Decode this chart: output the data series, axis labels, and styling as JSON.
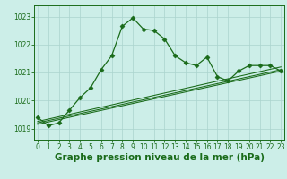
{
  "title": "Graphe pression niveau de la mer (hPa)",
  "background_color": "#cceee8",
  "grid_color": "#aad4ce",
  "line_color": "#1a6b1a",
  "ylim": [
    1018.6,
    1023.4
  ],
  "xlim": [
    -0.3,
    23.3
  ],
  "yticks": [
    1019,
    1020,
    1021,
    1022,
    1023
  ],
  "xticks": [
    0,
    1,
    2,
    3,
    4,
    5,
    6,
    7,
    8,
    9,
    10,
    11,
    12,
    13,
    14,
    15,
    16,
    17,
    18,
    19,
    20,
    21,
    22,
    23
  ],
  "main_series": [
    1019.4,
    1019.1,
    1019.2,
    1019.65,
    1020.1,
    1020.45,
    1021.1,
    1021.6,
    1022.65,
    1022.95,
    1022.55,
    1022.5,
    1022.2,
    1021.6,
    1021.35,
    1021.25,
    1021.55,
    1020.85,
    1020.7,
    1021.05,
    1021.25,
    1021.25,
    1021.25,
    1021.05
  ],
  "trend_lines": [
    {
      "x0": 0,
      "y0": 1019.15,
      "x1": 23,
      "y1": 1021.05
    },
    {
      "x0": 0,
      "y0": 1019.2,
      "x1": 23,
      "y1": 1021.1
    },
    {
      "x0": 0,
      "y0": 1019.25,
      "x1": 23,
      "y1": 1021.2
    }
  ],
  "marker": "D",
  "markersize": 2.5,
  "linewidth": 0.9,
  "title_fontsize": 7.5,
  "tick_fontsize": 5.5,
  "tick_color": "#1a6b1a",
  "axis_color": "#1a6b1a"
}
